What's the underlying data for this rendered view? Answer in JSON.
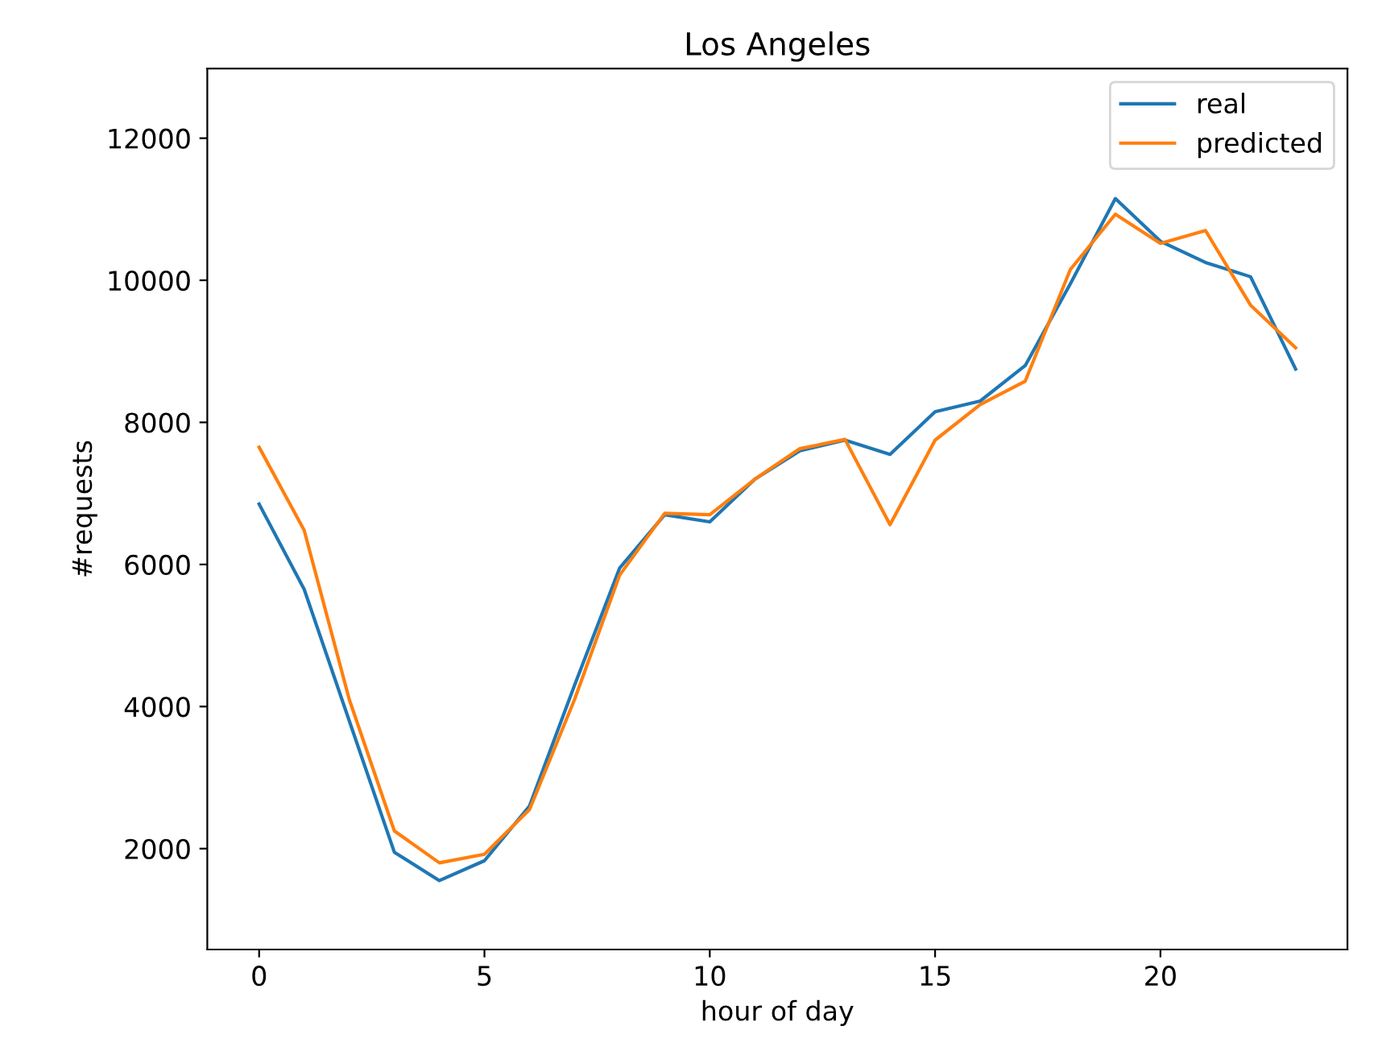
{
  "chart_data": {
    "type": "line",
    "title": "Los Angeles",
    "xlabel": "hour of day",
    "ylabel": "#requests",
    "x": [
      0,
      1,
      2,
      3,
      4,
      5,
      6,
      7,
      8,
      9,
      10,
      11,
      12,
      13,
      14,
      15,
      16,
      17,
      18,
      19,
      20,
      21,
      22,
      23
    ],
    "series": [
      {
        "name": "real",
        "color": "#1f77b4",
        "values": [
          6850,
          5650,
          3800,
          1950,
          1550,
          1830,
          2600,
          4300,
          5950,
          6700,
          6600,
          7200,
          7600,
          7750,
          7550,
          8150,
          8300,
          8800,
          9950,
          11150,
          10550,
          10250,
          10050,
          8750
        ]
      },
      {
        "name": "predicted",
        "color": "#ff7f0e",
        "values": [
          7650,
          6480,
          4100,
          2250,
          1800,
          1920,
          2550,
          4100,
          5850,
          6720,
          6700,
          7200,
          7630,
          7760,
          6560,
          7750,
          8250,
          8580,
          10150,
          10930,
          10520,
          10700,
          9650,
          9050
        ]
      }
    ],
    "xlim": [
      -1.15,
      24.15
    ],
    "ylim": [
      580,
      12980
    ],
    "xticks": [
      0,
      5,
      10,
      15,
      20
    ],
    "yticks": [
      2000,
      4000,
      6000,
      8000,
      10000,
      12000
    ],
    "legend": "top right",
    "grid": false
  }
}
